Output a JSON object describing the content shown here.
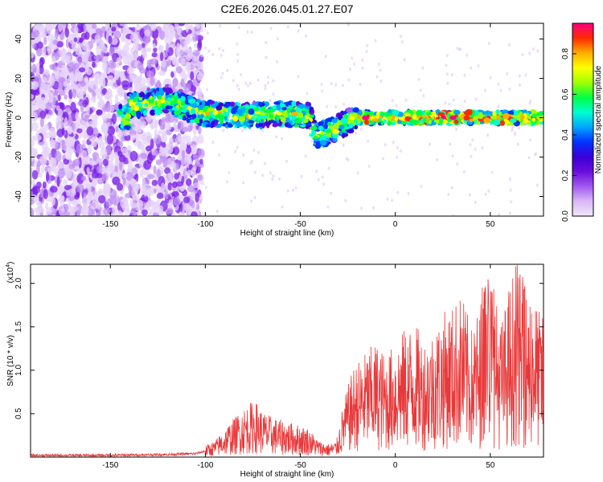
{
  "title": "C2E6.2026.045.01.27.E07",
  "chart_data": [
    {
      "type": "heatmap",
      "title": "C2E6.2026.045.01.27.E07",
      "xlabel": "Height of straight line (km)",
      "ylabel": "Frequency (Hz)",
      "xlim": [
        -192,
        78
      ],
      "ylim": [
        -50,
        48
      ],
      "xticks": [
        -150,
        -100,
        -50,
        0,
        50
      ],
      "yticks": [
        -40,
        -20,
        0,
        20,
        40
      ],
      "colorbar": {
        "label": "Normalized spectral amplitude",
        "range": [
          0,
          0.95
        ],
        "ticks": [
          0.0,
          0.2,
          0.4,
          0.6,
          0.8
        ],
        "colormap": [
          "#f2e6fb",
          "#d9b8f5",
          "#a259f0",
          "#6a0ddc",
          "#3a00d8",
          "#0033ff",
          "#00a6ff",
          "#00ffd0",
          "#00ff44",
          "#9dff00",
          "#ffff00",
          "#ffae00",
          "#ff2a00",
          "#ff0080"
        ]
      },
      "ridge": [
        {
          "x": -140,
          "f": 6
        },
        {
          "x": -120,
          "f": 9
        },
        {
          "x": -110,
          "f": 5
        },
        {
          "x": -100,
          "f": 2
        },
        {
          "x": -80,
          "f": 1
        },
        {
          "x": -60,
          "f": 2
        },
        {
          "x": -45,
          "f": 1
        },
        {
          "x": -42,
          "f": -10
        },
        {
          "x": -20,
          "f": 0
        },
        {
          "x": 0,
          "f": 0
        },
        {
          "x": 40,
          "f": 0
        },
        {
          "x": 78,
          "f": 0
        }
      ]
    },
    {
      "type": "line",
      "xlabel": "Height of straight line (km)",
      "ylabel": "SNR (10 * v/v)",
      "yscale_label": "(x10",
      "yscale_exp": "4",
      "yscale_close": ")",
      "xlim": [
        -192,
        78
      ],
      "ylim": [
        0,
        2.22
      ],
      "xticks": [
        -150,
        -100,
        -50,
        0,
        50
      ],
      "yticks": [
        0.5,
        1.0,
        1.5,
        2.0
      ],
      "color": "#e8393a",
      "series": [
        {
          "name": "SNR",
          "points": [
            {
              "x": -192,
              "y": 0.02
            },
            {
              "x": -150,
              "y": 0.02
            },
            {
              "x": -120,
              "y": 0.03
            },
            {
              "x": -105,
              "y": 0.04
            },
            {
              "x": -95,
              "y": 0.1
            },
            {
              "x": -88,
              "y": 0.2
            },
            {
              "x": -80,
              "y": 0.3
            },
            {
              "x": -74,
              "y": 0.35
            },
            {
              "x": -70,
              "y": 0.28
            },
            {
              "x": -64,
              "y": 0.24
            },
            {
              "x": -58,
              "y": 0.22
            },
            {
              "x": -52,
              "y": 0.2
            },
            {
              "x": -46,
              "y": 0.18
            },
            {
              "x": -40,
              "y": 0.1
            },
            {
              "x": -35,
              "y": 0.08
            },
            {
              "x": -31,
              "y": 0.1
            },
            {
              "x": -27,
              "y": 0.35
            },
            {
              "x": -22,
              "y": 0.55
            },
            {
              "x": -15,
              "y": 0.65
            },
            {
              "x": -10,
              "y": 0.7
            },
            {
              "x": -5,
              "y": 0.62
            },
            {
              "x": 0,
              "y": 0.7
            },
            {
              "x": 5,
              "y": 0.78
            },
            {
              "x": 10,
              "y": 0.82
            },
            {
              "x": 15,
              "y": 0.72
            },
            {
              "x": 20,
              "y": 0.78
            },
            {
              "x": 25,
              "y": 0.88
            },
            {
              "x": 30,
              "y": 0.92
            },
            {
              "x": 35,
              "y": 1.0
            },
            {
              "x": 40,
              "y": 0.78
            },
            {
              "x": 45,
              "y": 0.95
            },
            {
              "x": 48,
              "y": 1.3
            },
            {
              "x": 52,
              "y": 1.0
            },
            {
              "x": 56,
              "y": 0.82
            },
            {
              "x": 60,
              "y": 1.05
            },
            {
              "x": 64,
              "y": 1.2
            },
            {
              "x": 68,
              "y": 1.0
            },
            {
              "x": 72,
              "y": 1.05
            },
            {
              "x": 75,
              "y": 0.9
            },
            {
              "x": 78,
              "y": 0.85
            }
          ]
        }
      ]
    }
  ]
}
